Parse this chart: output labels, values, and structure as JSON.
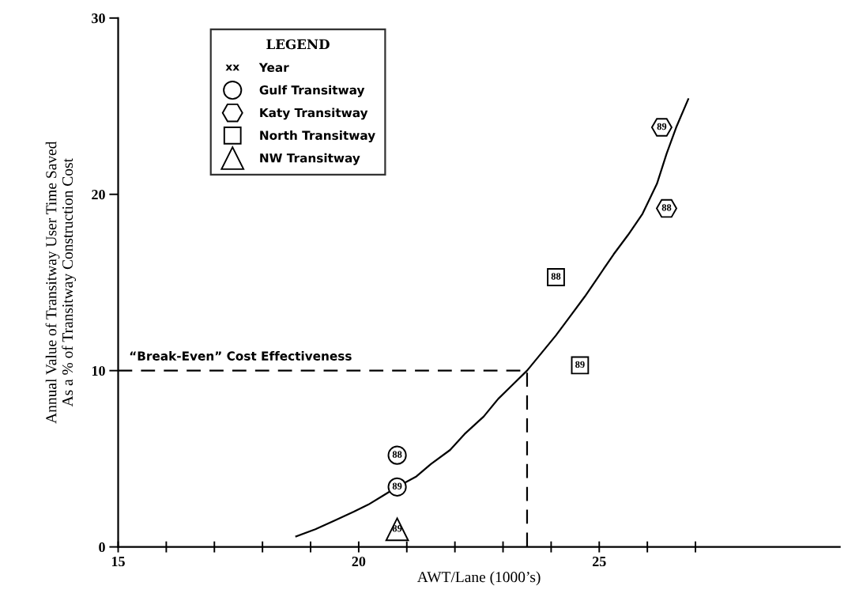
{
  "chart_data": {
    "type": "scatter",
    "xlabel": "AWT/Lane (1000’s)",
    "ylabel": "Annual Value of Transitway User Time Saved\nAs a % of Transitway Construction Cost",
    "legend_title": "LEGEND",
    "legend": "top left",
    "xlim": [
      15,
      30
    ],
    "ylim": [
      0,
      30
    ],
    "xticks": [
      15,
      {
        "value": 16,
        "label": null
      },
      {
        "value": 17,
        "label": null
      },
      {
        "value": 18,
        "label": null
      },
      {
        "value": 19,
        "label": null
      },
      20,
      {
        "value": 21,
        "label": null
      },
      {
        "value": 22,
        "label": null
      },
      {
        "value": 23,
        "label": null
      },
      {
        "value": 24,
        "label": null
      },
      25,
      {
        "value": 26,
        "label": null
      },
      {
        "value": 27,
        "label": null
      }
    ],
    "yticks": [
      0,
      10,
      20,
      30
    ],
    "grid": false,
    "series": [
      {
        "name": "Gulf Transitway",
        "marker": "circle",
        "color": "#000000",
        "x": [
          20.8,
          20.8
        ],
        "values": [
          5.2,
          3.4
        ]
      },
      {
        "name": "Katy Transitway",
        "color": "#000000",
        "x": [
          26.3,
          26.4
        ],
        "values": [
          23.8,
          19.2
        ]
      },
      {
        "name": "North Transitway",
        "marker": "square",
        "color": "#000000",
        "x": [
          24.1,
          24.6
        ],
        "values": [
          15.3,
          10.3
        ]
      },
      {
        "name": "NW Transitway",
        "marker": "triangle",
        "color": "#000000",
        "x": [
          20.8
        ],
        "values": [
          1.0
        ]
      },
      {
        "type": "line",
        "line_style": "solid",
        "color": "#000000",
        "x": [
          18.7,
          19.1,
          19.5,
          19.9,
          20.2,
          20.5,
          20.8,
          21.2,
          21.5,
          21.9,
          22.2,
          22.6,
          22.9,
          23.2,
          23.5,
          23.8,
          24.1,
          24.4,
          24.7,
          25.0,
          25.3,
          25.6,
          25.9,
          26.2,
          26.4,
          26.6,
          26.85
        ],
        "values": [
          0.6,
          1.0,
          1.5,
          2.0,
          2.4,
          2.9,
          3.4,
          4.0,
          4.7,
          5.5,
          6.4,
          7.4,
          8.4,
          9.2,
          10,
          11.0,
          12,
          13.1,
          14.2,
          15.4,
          16.6,
          17.7,
          18.9,
          20.6,
          22.3,
          23.8,
          25.4
        ]
      },
      {
        "type": "line",
        "line_style": "dashed",
        "color": "#000000",
        "x": [
          15,
          23.5,
          23.5
        ],
        "values": [
          10,
          10,
          0
        ]
      }
    ],
    "annotations": [
      {
        "text": "88",
        "x": 20.8,
        "y": 5.2
      },
      {
        "text": "89",
        "x": 20.8,
        "y": 3.4
      },
      {
        "text": "89",
        "x": 26.3,
        "y": 23.8
      },
      {
        "text": "88",
        "x": 26.4,
        "y": 19.2
      },
      {
        "text": "88",
        "x": 24.1,
        "y": 15.3
      },
      {
        "text": "89",
        "x": 24.6,
        "y": 10.3
      },
      {
        "text": "89",
        "x": 20.8,
        "y": 1.0
      },
      "“Break-Even” Cost Effectiveness",
      "xx",
      "Year"
    ]
  }
}
